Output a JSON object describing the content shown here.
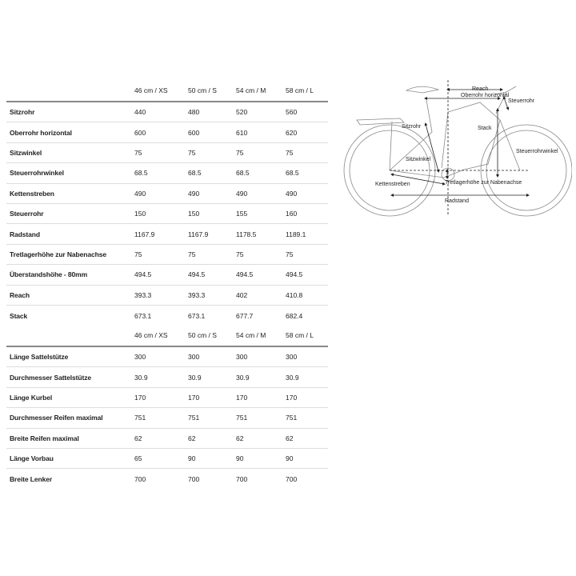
{
  "table1": {
    "columns": [
      "46 cm / XS",
      "50 cm / S",
      "54 cm / M",
      "58 cm / L"
    ],
    "rows": [
      {
        "label": "Sitzrohr",
        "values": [
          "440",
          "480",
          "520",
          "560"
        ]
      },
      {
        "label": "Oberrohr horizontal",
        "values": [
          "600",
          "600",
          "610",
          "620"
        ]
      },
      {
        "label": "Sitzwinkel",
        "values": [
          "75",
          "75",
          "75",
          "75"
        ]
      },
      {
        "label": "Steuerrohrwinkel",
        "values": [
          "68.5",
          "68.5",
          "68.5",
          "68.5"
        ]
      },
      {
        "label": "Kettenstreben",
        "values": [
          "490",
          "490",
          "490",
          "490"
        ]
      },
      {
        "label": "Steuerrohr",
        "values": [
          "150",
          "150",
          "155",
          "160"
        ]
      },
      {
        "label": "Radstand",
        "values": [
          "1167.9",
          "1167.9",
          "1178.5",
          "1189.1"
        ]
      },
      {
        "label": "Tretlagerhöhe zur Nabenachse",
        "values": [
          "75",
          "75",
          "75",
          "75"
        ]
      },
      {
        "label": "Überstandshöhe - 80mm",
        "values": [
          "494.5",
          "494.5",
          "494.5",
          "494.5"
        ]
      },
      {
        "label": "Reach",
        "values": [
          "393.3",
          "393.3",
          "402",
          "410.8"
        ]
      },
      {
        "label": "Stack",
        "values": [
          "673.1",
          "673.1",
          "677.7",
          "682.4"
        ]
      }
    ]
  },
  "table2": {
    "columns": [
      "46 cm / XS",
      "50 cm / S",
      "54 cm / M",
      "58 cm / L"
    ],
    "rows": [
      {
        "label": "Länge Sattelstütze",
        "values": [
          "300",
          "300",
          "300",
          "300"
        ]
      },
      {
        "label": "Durchmesser Sattelstütze",
        "values": [
          "30.9",
          "30.9",
          "30.9",
          "30.9"
        ]
      },
      {
        "label": "Länge Kurbel",
        "values": [
          "170",
          "170",
          "170",
          "170"
        ]
      },
      {
        "label": "Durchmesser Reifen maximal",
        "values": [
          "751",
          "751",
          "751",
          "751"
        ]
      },
      {
        "label": "Breite Reifen maximal",
        "values": [
          "62",
          "62",
          "62",
          "62"
        ]
      },
      {
        "label": "Länge Vorbau",
        "values": [
          "65",
          "90",
          "90",
          "90"
        ]
      },
      {
        "label": "Breite Lenker",
        "values": [
          "700",
          "700",
          "700",
          "700"
        ]
      }
    ]
  },
  "diagram": {
    "labels": {
      "reach": "Reach",
      "oberrohr": "Oberrohr horizontal",
      "steuerrohr": "Steuerrohr",
      "sitzrohr": "Sitzrohr",
      "stack": "Stack",
      "steuerrohrwinkel": "Steuerrohrwinkel",
      "sitzwinkel": "Sitzwinkel",
      "kettenstreben": "Kettenstreben",
      "tretlager": "Tretlagerhöhe zur Nabenachse",
      "radstand": "Radstand"
    }
  }
}
